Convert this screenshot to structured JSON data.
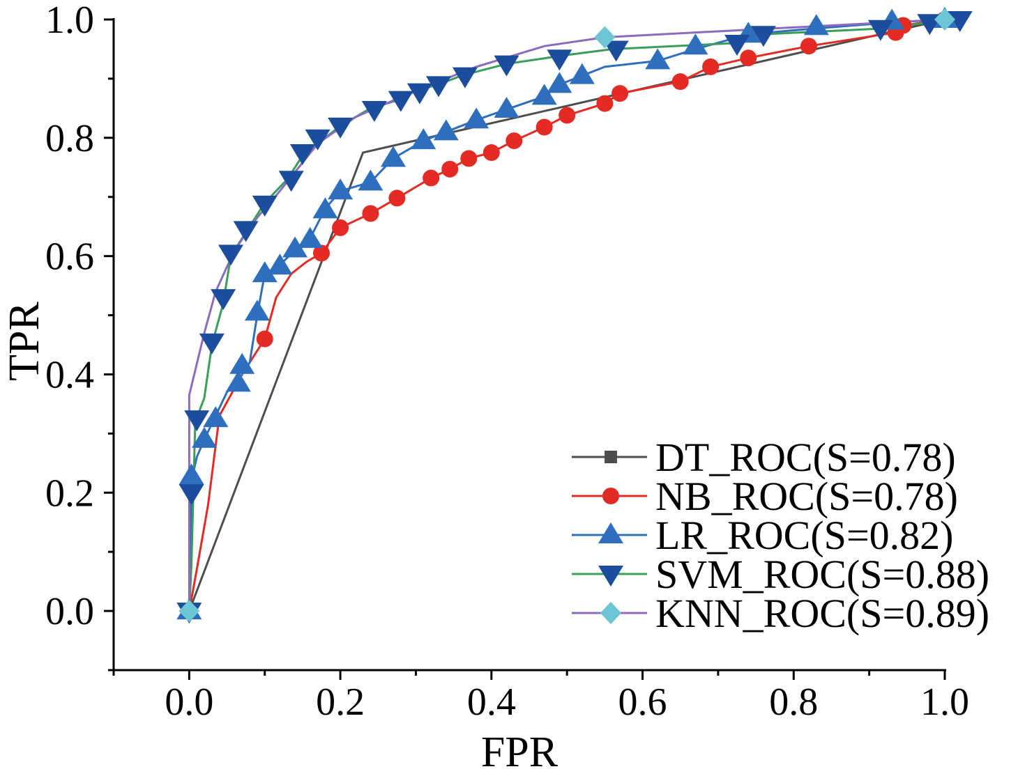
{
  "chart_data": {
    "type": "line",
    "xlabel": "FPR",
    "ylabel": "TPR",
    "xlim": [
      -0.1,
      1.0
    ],
    "ylim": [
      -0.1,
      1.0
    ],
    "xticks": [
      "0.0",
      "0.2",
      "0.4",
      "0.6",
      "0.8",
      "1.0"
    ],
    "yticks": [
      "0.0",
      "0.2",
      "0.4",
      "0.6",
      "0.8",
      "1.0"
    ],
    "legend_position": "bottom-right",
    "series": [
      {
        "name": "DT_ROC(S=0.78)",
        "color": "#4d4d4d",
        "marker": "square",
        "line": [
          [
            0,
            0
          ],
          [
            0.23,
            0.775
          ],
          [
            1.0,
            1.0
          ]
        ],
        "markers": [
          [
            0,
            0
          ]
        ]
      },
      {
        "name": "NB_ROC(S=0.78)",
        "color": "#e32b24",
        "marker": "circle",
        "line": [
          [
            0,
            0
          ],
          [
            0.01,
            0.07
          ],
          [
            0.025,
            0.18
          ],
          [
            0.04,
            0.33
          ],
          [
            0.07,
            0.4
          ],
          [
            0.09,
            0.44
          ],
          [
            0.1,
            0.46
          ],
          [
            0.115,
            0.53
          ],
          [
            0.135,
            0.57
          ],
          [
            0.155,
            0.59
          ],
          [
            0.175,
            0.605
          ],
          [
            0.2,
            0.648
          ],
          [
            0.24,
            0.672
          ],
          [
            0.275,
            0.698
          ],
          [
            0.32,
            0.732
          ],
          [
            0.345,
            0.747
          ],
          [
            0.37,
            0.765
          ],
          [
            0.4,
            0.775
          ],
          [
            0.43,
            0.795
          ],
          [
            0.47,
            0.818
          ],
          [
            0.5,
            0.838
          ],
          [
            0.55,
            0.858
          ],
          [
            0.57,
            0.875
          ],
          [
            0.65,
            0.895
          ],
          [
            0.69,
            0.92
          ],
          [
            0.74,
            0.935
          ],
          [
            0.82,
            0.955
          ],
          [
            0.92,
            0.975
          ],
          [
            0.935,
            0.978
          ],
          [
            0.945,
            0.99
          ],
          [
            1.0,
            1.0
          ]
        ],
        "markers": [
          [
            0,
            0
          ],
          [
            0.1,
            0.46
          ],
          [
            0.175,
            0.605
          ],
          [
            0.2,
            0.648
          ],
          [
            0.24,
            0.672
          ],
          [
            0.275,
            0.698
          ],
          [
            0.32,
            0.732
          ],
          [
            0.345,
            0.747
          ],
          [
            0.37,
            0.765
          ],
          [
            0.4,
            0.775
          ],
          [
            0.43,
            0.795
          ],
          [
            0.47,
            0.818
          ],
          [
            0.5,
            0.838
          ],
          [
            0.55,
            0.858
          ],
          [
            0.57,
            0.875
          ],
          [
            0.65,
            0.895
          ],
          [
            0.69,
            0.92
          ],
          [
            0.74,
            0.935
          ],
          [
            0.82,
            0.955
          ],
          [
            0.935,
            0.978
          ],
          [
            0.945,
            0.99
          ],
          [
            1.0,
            1.0
          ]
        ]
      },
      {
        "name": "LR_ROC(S=0.82)",
        "color": "#2e6fbd",
        "marker": "triangle-up",
        "line": [
          [
            0,
            0
          ],
          [
            0.003,
            0.22
          ],
          [
            0.01,
            0.26
          ],
          [
            0.02,
            0.29
          ],
          [
            0.035,
            0.33
          ],
          [
            0.05,
            0.37
          ],
          [
            0.065,
            0.39
          ],
          [
            0.08,
            0.42
          ],
          [
            0.09,
            0.5
          ],
          [
            0.1,
            0.57
          ],
          [
            0.12,
            0.585
          ],
          [
            0.14,
            0.61
          ],
          [
            0.16,
            0.63
          ],
          [
            0.18,
            0.68
          ],
          [
            0.2,
            0.71
          ],
          [
            0.24,
            0.725
          ],
          [
            0.27,
            0.765
          ],
          [
            0.31,
            0.795
          ],
          [
            0.34,
            0.81
          ],
          [
            0.38,
            0.83
          ],
          [
            0.42,
            0.848
          ],
          [
            0.47,
            0.87
          ],
          [
            0.49,
            0.89
          ],
          [
            0.52,
            0.905
          ],
          [
            0.55,
            0.92
          ],
          [
            0.62,
            0.93
          ],
          [
            0.67,
            0.95
          ],
          [
            0.74,
            0.975
          ],
          [
            0.83,
            0.985
          ],
          [
            0.93,
            0.995
          ],
          [
            1.0,
            1.0
          ]
        ],
        "markers": [
          [
            0,
            0
          ],
          [
            0.003,
            0.228
          ],
          [
            0.02,
            0.29
          ],
          [
            0.035,
            0.325
          ],
          [
            0.065,
            0.385
          ],
          [
            0.07,
            0.415
          ],
          [
            0.09,
            0.505
          ],
          [
            0.1,
            0.57
          ],
          [
            0.12,
            0.583
          ],
          [
            0.14,
            0.612
          ],
          [
            0.16,
            0.628
          ],
          [
            0.18,
            0.678
          ],
          [
            0.2,
            0.71
          ],
          [
            0.24,
            0.725
          ],
          [
            0.27,
            0.765
          ],
          [
            0.31,
            0.795
          ],
          [
            0.34,
            0.81
          ],
          [
            0.38,
            0.83
          ],
          [
            0.42,
            0.848
          ],
          [
            0.47,
            0.87
          ],
          [
            0.49,
            0.89
          ],
          [
            0.52,
            0.905
          ],
          [
            0.62,
            0.93
          ],
          [
            0.67,
            0.955
          ],
          [
            0.74,
            0.975
          ],
          [
            0.83,
            0.988
          ],
          [
            0.93,
            0.997
          ],
          [
            1.0,
            1.0
          ]
        ]
      },
      {
        "name": "SVM_ROC(S=0.88)",
        "color": "#3a9e5a",
        "marker_color": "#1c4c9c",
        "marker": "triangle-down",
        "line": [
          [
            0,
            0
          ],
          [
            0.003,
            0.08
          ],
          [
            0.008,
            0.32
          ],
          [
            0.02,
            0.36
          ],
          [
            0.03,
            0.45
          ],
          [
            0.045,
            0.52
          ],
          [
            0.055,
            0.6
          ],
          [
            0.075,
            0.64
          ],
          [
            0.1,
            0.69
          ],
          [
            0.13,
            0.73
          ],
          [
            0.15,
            0.77
          ],
          [
            0.18,
            0.8
          ],
          [
            0.2,
            0.82
          ],
          [
            0.24,
            0.85
          ],
          [
            0.28,
            0.865
          ],
          [
            0.3,
            0.88
          ],
          [
            0.33,
            0.89
          ],
          [
            0.36,
            0.905
          ],
          [
            0.42,
            0.925
          ],
          [
            0.5,
            0.94
          ],
          [
            0.56,
            0.95
          ],
          [
            0.72,
            0.96
          ],
          [
            0.76,
            0.975
          ],
          [
            0.92,
            0.985
          ],
          [
            0.98,
            0.995
          ],
          [
            1.0,
            1.0
          ]
        ],
        "markers": [
          [
            0,
            0
          ],
          [
            0.003,
            0.2
          ],
          [
            0.01,
            0.325
          ],
          [
            0.03,
            0.455
          ],
          [
            0.045,
            0.53
          ],
          [
            0.055,
            0.605
          ],
          [
            0.075,
            0.645
          ],
          [
            0.1,
            0.688
          ],
          [
            0.135,
            0.73
          ],
          [
            0.15,
            0.775
          ],
          [
            0.17,
            0.8
          ],
          [
            0.2,
            0.82
          ],
          [
            0.245,
            0.848
          ],
          [
            0.28,
            0.865
          ],
          [
            0.305,
            0.878
          ],
          [
            0.33,
            0.89
          ],
          [
            0.365,
            0.905
          ],
          [
            0.42,
            0.925
          ],
          [
            0.49,
            0.935
          ],
          [
            0.565,
            0.95
          ],
          [
            0.725,
            0.96
          ],
          [
            0.76,
            0.975
          ],
          [
            0.915,
            0.985
          ],
          [
            0.98,
            0.995
          ],
          [
            1.02,
            1.0
          ]
        ]
      },
      {
        "name": "KNN_ROC(S=0.89)",
        "color": "#8c6bbf",
        "marker_color": "#6cc6d6",
        "marker": "diamond",
        "line": [
          [
            0,
            0
          ],
          [
            0.0,
            0.365
          ],
          [
            0.02,
            0.47
          ],
          [
            0.035,
            0.54
          ],
          [
            0.06,
            0.61
          ],
          [
            0.09,
            0.665
          ],
          [
            0.12,
            0.71
          ],
          [
            0.17,
            0.79
          ],
          [
            0.22,
            0.835
          ],
          [
            0.3,
            0.88
          ],
          [
            0.38,
            0.92
          ],
          [
            0.47,
            0.955
          ],
          [
            0.55,
            0.97
          ],
          [
            0.7,
            0.98
          ],
          [
            0.85,
            0.99
          ],
          [
            1.0,
            1.0
          ]
        ],
        "markers": [
          [
            0,
            0
          ],
          [
            0.55,
            0.97
          ],
          [
            1.0,
            1.0
          ]
        ]
      }
    ]
  }
}
